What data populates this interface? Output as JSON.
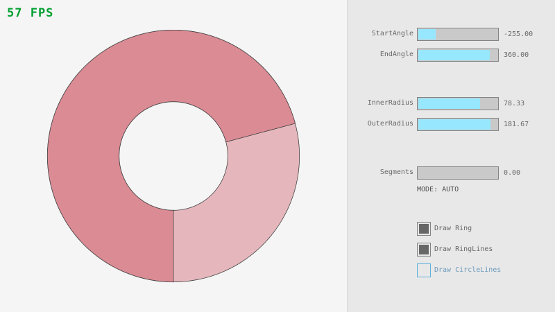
{
  "fps_counter": "57 FPS",
  "ring": {
    "start_angle": -255,
    "end_angle": 360,
    "inner_radius": 78.33,
    "outer_radius": 181.67,
    "colors": {
      "single": "#e5b7bd",
      "overlap": "#db8b94",
      "outline": "#444444"
    }
  },
  "controls": {
    "sliders": [
      {
        "label": "StartAngle",
        "value": "-255.00",
        "fraction": 0.217
      },
      {
        "label": "EndAngle",
        "value": "360.00",
        "fraction": 0.9
      },
      {
        "label": "InnerRadius",
        "value": "78.33",
        "fraction": 0.783
      },
      {
        "label": "OuterRadius",
        "value": "181.67",
        "fraction": 0.908
      },
      {
        "label": "Segments",
        "value": "0.00",
        "fraction": 0
      }
    ],
    "mode": "MODE: AUTO",
    "checkboxes": [
      {
        "label": "Draw Ring",
        "checked": true
      },
      {
        "label": "Draw RingLines",
        "checked": true
      },
      {
        "label": "Draw CircleLines",
        "checked": false,
        "focused": true
      }
    ]
  }
}
